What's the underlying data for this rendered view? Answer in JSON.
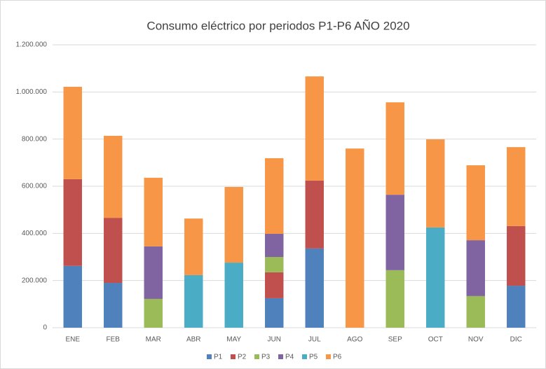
{
  "chart_data": {
    "type": "stacked_bar",
    "title": "Consumo eléctrico por periodos P1-P6 AÑO 2020",
    "categories": [
      "ENE",
      "FEB",
      "MAR",
      "ABR",
      "MAY",
      "JUN",
      "JUL",
      "AGO",
      "SEP",
      "OCT",
      "NOV",
      "DIC"
    ],
    "series": [
      {
        "name": "P1",
        "color": "#4f81bd",
        "values": [
          262000,
          190000,
          0,
          0,
          0,
          125000,
          336000,
          0,
          0,
          0,
          0,
          178000
        ]
      },
      {
        "name": "P2",
        "color": "#c0504d",
        "values": [
          368000,
          276000,
          0,
          0,
          0,
          110000,
          288000,
          0,
          0,
          0,
          0,
          253000
        ]
      },
      {
        "name": "P3",
        "color": "#9bbb59",
        "values": [
          0,
          0,
          122000,
          0,
          0,
          65000,
          0,
          0,
          244000,
          0,
          134000,
          0
        ]
      },
      {
        "name": "P4",
        "color": "#8064a2",
        "values": [
          0,
          0,
          223000,
          0,
          0,
          98000,
          0,
          0,
          320000,
          0,
          237000,
          0
        ]
      },
      {
        "name": "P5",
        "color": "#4bacc6",
        "values": [
          0,
          0,
          0,
          223000,
          276000,
          0,
          0,
          0,
          0,
          425000,
          0,
          0
        ]
      },
      {
        "name": "P6",
        "color": "#f79646",
        "values": [
          392000,
          348000,
          291000,
          240000,
          321000,
          321000,
          442000,
          760000,
          392000,
          374000,
          318000,
          335000
        ]
      }
    ],
    "ylim": [
      0,
      1200000
    ],
    "yticks": [
      0,
      {
        "value": 200000,
        "label": "200.000"
      },
      {
        "value": 400000,
        "label": "400.000"
      },
      {
        "value": 600000,
        "label": "600.000"
      },
      {
        "value": 800000,
        "label": "800.000"
      },
      {
        "value": 1000000,
        "label": "1.000.000"
      },
      {
        "value": 1200000,
        "label": "1.200.000"
      }
    ],
    "grid": true,
    "legend": "bottom"
  }
}
